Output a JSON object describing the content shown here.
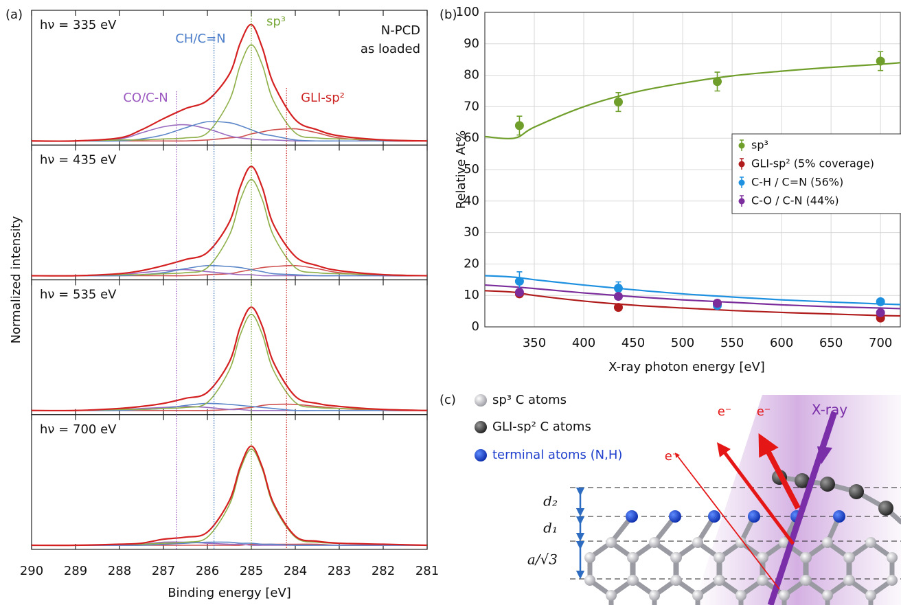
{
  "panel_labels": [
    "(a)",
    "(b)",
    "(c)"
  ],
  "chart_data": [
    {
      "type": "line",
      "x_label": "Binding energy [eV]",
      "y_label": "Normalized intensity",
      "xlim": [
        290,
        281
      ],
      "xticks": [
        290,
        289,
        288,
        287,
        286,
        285,
        284,
        283,
        282,
        281
      ],
      "ylim": [
        0,
        1.25
      ],
      "annotation": [
        "N-PCD",
        "as loaded"
      ],
      "markers": [
        {
          "label": "CO/C-N",
          "x": 286.7,
          "color": "#9b59c0"
        },
        {
          "label": "CH/C=N",
          "x": 285.85,
          "color": "#4a7cc9"
        },
        {
          "label": "sp³",
          "x": 285,
          "color": "#7aa83a"
        },
        {
          "label": "GLI-sp²",
          "x": 284.2,
          "color": "#cc2222"
        }
      ],
      "x": [
        290,
        289,
        288,
        287.5,
        287,
        286.5,
        286,
        285.5,
        285.25,
        285,
        284.75,
        284.5,
        284,
        283.5,
        283,
        282,
        281
      ],
      "panels": [
        {
          "label": "hν = 335 eV",
          "series": [
            {
              "color": "#d42020",
              "values": [
                0,
                0,
                0.03,
                0.11,
                0.22,
                0.32,
                0.4,
                0.66,
                0.97,
                1.15,
                0.92,
                0.57,
                0.21,
                0.11,
                0.05,
                0.01,
                0
              ]
            },
            {
              "color": "#8fb04a",
              "values": [
                0,
                0,
                0.01,
                0.01,
                0.02,
                0.03,
                0.08,
                0.4,
                0.75,
                0.95,
                0.75,
                0.4,
                0.08,
                0.03,
                0.02,
                0.01,
                0
              ]
            },
            {
              "color": "#5a85c8",
              "values": [
                0,
                0,
                0,
                0.02,
                0.06,
                0.13,
                0.19,
                0.18,
                0.15,
                0.11,
                0.07,
                0.05,
                0.01,
                0,
                0,
                0,
                0
              ]
            },
            {
              "color": "#9a6cc0",
              "values": [
                0,
                0,
                0.02,
                0.08,
                0.14,
                0.16,
                0.12,
                0.05,
                0.03,
                0.02,
                0.01,
                0.01,
                0,
                0,
                0,
                0,
                0
              ]
            },
            {
              "color": "#d05050",
              "values": [
                0,
                0,
                0,
                0,
                0,
                0,
                0.01,
                0.03,
                0.04,
                0.07,
                0.09,
                0.11,
                0.12,
                0.08,
                0.03,
                0,
                0
              ]
            }
          ]
        },
        {
          "label": "hν = 435 eV",
          "series": [
            {
              "color": "#d42020",
              "values": [
                0,
                0,
                0.02,
                0.05,
                0.1,
                0.16,
                0.23,
                0.53,
                0.88,
                1.08,
                0.87,
                0.51,
                0.19,
                0.1,
                0.05,
                0.01,
                0
              ]
            },
            {
              "color": "#8fb04a",
              "values": [
                0,
                0,
                0.01,
                0.01,
                0.02,
                0.03,
                0.08,
                0.4,
                0.75,
                0.95,
                0.75,
                0.4,
                0.08,
                0.03,
                0.02,
                0.01,
                0
              ]
            },
            {
              "color": "#5a85c8",
              "values": [
                0,
                0,
                0,
                0.01,
                0.03,
                0.07,
                0.1,
                0.09,
                0.08,
                0.06,
                0.04,
                0.02,
                0.01,
                0,
                0,
                0,
                0
              ]
            },
            {
              "color": "#9a6cc0",
              "values": [
                0,
                0,
                0.01,
                0.03,
                0.05,
                0.06,
                0.04,
                0.02,
                0.01,
                0.01,
                0,
                0,
                0,
                0,
                0,
                0,
                0
              ]
            },
            {
              "color": "#d05050",
              "values": [
                0,
                0,
                0,
                0,
                0,
                0,
                0.01,
                0.02,
                0.04,
                0.06,
                0.08,
                0.09,
                0.1,
                0.07,
                0.03,
                0,
                0
              ]
            }
          ]
        },
        {
          "label": "hν = 535 eV",
          "series": [
            {
              "color": "#d42020",
              "values": [
                0,
                0,
                0.02,
                0.04,
                0.07,
                0.12,
                0.18,
                0.48,
                0.83,
                1.02,
                0.83,
                0.48,
                0.14,
                0.07,
                0.04,
                0.01,
                0
              ]
            },
            {
              "color": "#8fb04a",
              "values": [
                0,
                0,
                0.01,
                0.01,
                0.02,
                0.03,
                0.08,
                0.4,
                0.75,
                0.95,
                0.75,
                0.4,
                0.08,
                0.03,
                0.02,
                0.01,
                0
              ]
            },
            {
              "color": "#5a85c8",
              "values": [
                0,
                0,
                0,
                0.01,
                0.02,
                0.05,
                0.07,
                0.06,
                0.05,
                0.04,
                0.03,
                0.02,
                0,
                0,
                0,
                0,
                0
              ]
            },
            {
              "color": "#9a6cc0",
              "values": [
                0,
                0,
                0.01,
                0.02,
                0.03,
                0.04,
                0.03,
                0.01,
                0.01,
                0,
                0,
                0,
                0,
                0,
                0,
                0,
                0
              ]
            },
            {
              "color": "#d05050",
              "values": [
                0,
                0,
                0,
                0,
                0,
                0,
                0,
                0.01,
                0.02,
                0.03,
                0.05,
                0.06,
                0.06,
                0.04,
                0.02,
                0,
                0
              ]
            }
          ]
        },
        {
          "label": "hν = 700 eV",
          "series": [
            {
              "color": "#d42020",
              "values": [
                0,
                0,
                0.01,
                0.02,
                0.06,
                0.08,
                0.13,
                0.44,
                0.78,
                0.98,
                0.77,
                0.42,
                0.09,
                0.04,
                0.02,
                0.01,
                0
              ]
            },
            {
              "color": "#8fb04a",
              "values": [
                0,
                0,
                0.01,
                0.01,
                0.02,
                0.03,
                0.08,
                0.4,
                0.75,
                0.95,
                0.75,
                0.4,
                0.08,
                0.03,
                0.02,
                0.01,
                0
              ]
            },
            {
              "color": "#5a85c8",
              "values": [
                0,
                0,
                0,
                0,
                0.01,
                0.02,
                0.03,
                0.03,
                0.02,
                0.02,
                0.01,
                0.01,
                0,
                0,
                0,
                0,
                0
              ]
            },
            {
              "color": "#9a6cc0",
              "values": [
                0,
                0,
                0,
                0.01,
                0.03,
                0.03,
                0.02,
                0.01,
                0.01,
                0,
                0,
                0,
                0,
                0,
                0,
                0,
                0
              ]
            },
            {
              "color": "#d05050",
              "values": [
                0,
                0,
                0,
                0,
                0,
                0,
                0,
                0,
                0,
                0.01,
                0.01,
                0.01,
                0.01,
                0.01,
                0,
                0,
                0
              ]
            }
          ]
        }
      ]
    },
    {
      "type": "scatter",
      "x_label": "X-ray photon energy [eV]",
      "y_label": "Relative At%",
      "xlim": [
        300,
        720
      ],
      "xticks": [
        350,
        400,
        450,
        500,
        550,
        600,
        650,
        700
      ],
      "ylim": [
        0,
        100
      ],
      "yticks": [
        0,
        10,
        20,
        30,
        40,
        50,
        60,
        70,
        80,
        90,
        100
      ],
      "grid": true,
      "legend": "right",
      "x": [
        335,
        435,
        535,
        700
      ],
      "fit_x": [
        300,
        330,
        350,
        400,
        450,
        500,
        550,
        600,
        650,
        700,
        720
      ],
      "series": [
        {
          "name": "sp³",
          "color": "#6f9e2a",
          "values": [
            64,
            71.5,
            78,
            84.5
          ],
          "errors": [
            3,
            3,
            3,
            3
          ],
          "fit": [
            60.5,
            60,
            63.5,
            70,
            74.5,
            77.5,
            79.8,
            81.3,
            82.5,
            83.5,
            84
          ]
        },
        {
          "name": "GLI-sp² (5% coverage)",
          "color": "#b01c1c",
          "values": [
            10.5,
            6.2,
            7.5,
            2.8
          ],
          "errors": [
            1,
            1,
            1,
            1
          ],
          "fit": [
            11.5,
            11,
            10,
            8.2,
            6.9,
            6,
            5.2,
            4.6,
            4.1,
            3.6,
            3.5
          ]
        },
        {
          "name": "C-H / C=N (56%)",
          "color": "#1e90e0",
          "values": [
            14.5,
            12.3,
            6.8,
            8
          ],
          "errors": [
            3,
            2,
            1,
            1
          ],
          "fit": [
            16.3,
            15.8,
            15,
            13.3,
            11.8,
            10.5,
            9.5,
            8.6,
            7.9,
            7.3,
            7.1
          ]
        },
        {
          "name": "C-O / C-N (44%)",
          "color": "#7b2d9b",
          "values": [
            11,
            9.7,
            7.5,
            4.5
          ],
          "errors": [
            1,
            1,
            1,
            1
          ],
          "fit": [
            13.3,
            12.7,
            12.2,
            10.8,
            9.6,
            8.6,
            7.8,
            7,
            6.4,
            6,
            5.8
          ]
        }
      ]
    }
  ],
  "diagram": {
    "legend": [
      "sp³ C atoms",
      "GLI-sp² C atoms",
      "terminal atoms (N,H)"
    ],
    "electron_labels": [
      "e⁻",
      "e⁻",
      "e⁻"
    ],
    "beam_label": "X-ray",
    "dimension_labels": [
      "d₂",
      "d₁",
      "a/√3"
    ]
  }
}
